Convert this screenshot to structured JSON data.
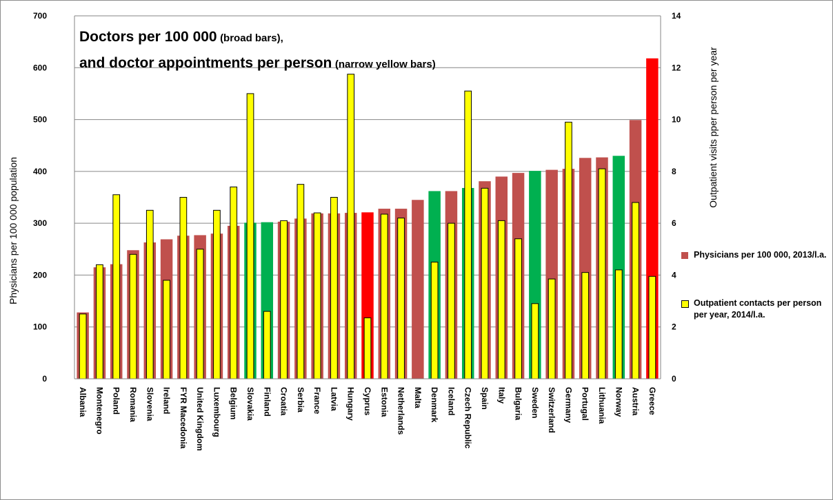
{
  "chart_data": {
    "type": "bar",
    "title": {
      "line1_main": "Doctors per 100 000",
      "line1_note": "(broad bars),",
      "line2_main": "and doctor appointments per person",
      "line2_note": "(narrow yellow bars)"
    },
    "ylabel_left": "Physicians per 100 000 population",
    "ylabel_right": "Outpatient visits pper person per year",
    "ylim_left": [
      0,
      700
    ],
    "ylim_right": [
      0,
      14
    ],
    "yticks_left": [
      "0",
      "100",
      "200",
      "300",
      "400",
      "500",
      "600",
      "700"
    ],
    "yticks_right": [
      "0",
      "2",
      "4",
      "6",
      "8",
      "10",
      "12",
      "14"
    ],
    "legend_position": "right",
    "categories": [
      "Albania",
      "Montenegro",
      "Poland",
      "Romania",
      "Slovenia",
      "Ireland",
      "FYR Macedonia",
      "United Kingdom",
      "Luxembourg",
      "Belgium",
      "Slovakia",
      "Finland",
      "Croatia",
      "Serbia",
      "France",
      "Latvia",
      "Hungary",
      "Cyprus",
      "Estonia",
      "Netherlands",
      "Malta",
      "Denmark",
      "Iceland",
      "Czech Republic",
      "Spain",
      "Italy",
      "Bulgaria",
      "Sweden",
      "Switzerland",
      "Germany",
      "Portugal",
      "Lithuania",
      "Norway",
      "Austria",
      "Greece"
    ],
    "series": [
      {
        "name": "Physicians per 100 000, 2013/l.a.",
        "axis": "left",
        "color": "#c0504d",
        "values": [
          128,
          215,
          221,
          248,
          263,
          269,
          276,
          277,
          280,
          295,
          301,
          302,
          303,
          309,
          319,
          319,
          320,
          321,
          328,
          328,
          345,
          362,
          362,
          368,
          381,
          390,
          397,
          401,
          403,
          405,
          426,
          427,
          430,
          499,
          618
        ],
        "bar_colors": [
          "#c0504d",
          "#c0504d",
          "#c0504d",
          "#c0504d",
          "#c0504d",
          "#c0504d",
          "#c0504d",
          "#c0504d",
          "#c0504d",
          "#c0504d",
          "#00b050",
          "#00b050",
          "#c0504d",
          "#c0504d",
          "#c0504d",
          "#c0504d",
          "#c0504d",
          "#ff0000",
          "#c0504d",
          "#c0504d",
          "#c0504d",
          "#00b050",
          "#c0504d",
          "#00b050",
          "#c0504d",
          "#c0504d",
          "#c0504d",
          "#00b050",
          "#c0504d",
          "#c0504d",
          "#c0504d",
          "#c0504d",
          "#00b050",
          "#c0504d",
          "#ff0000"
        ]
      },
      {
        "name": "Outpatient contacts per person per year, 2014/l.a.",
        "axis": "right",
        "color": "#ffff00",
        "values": [
          2.5,
          4.4,
          7.1,
          4.8,
          6.5,
          3.8,
          7.0,
          5.0,
          6.5,
          7.4,
          11.0,
          2.6,
          6.1,
          7.5,
          6.4,
          7.0,
          11.75,
          2.35,
          6.35,
          6.2,
          null,
          4.5,
          6.0,
          11.1,
          7.35,
          6.1,
          5.4,
          2.9,
          3.85,
          9.9,
          4.1,
          8.1,
          4.2,
          6.8,
          3.95
        ]
      }
    ]
  }
}
